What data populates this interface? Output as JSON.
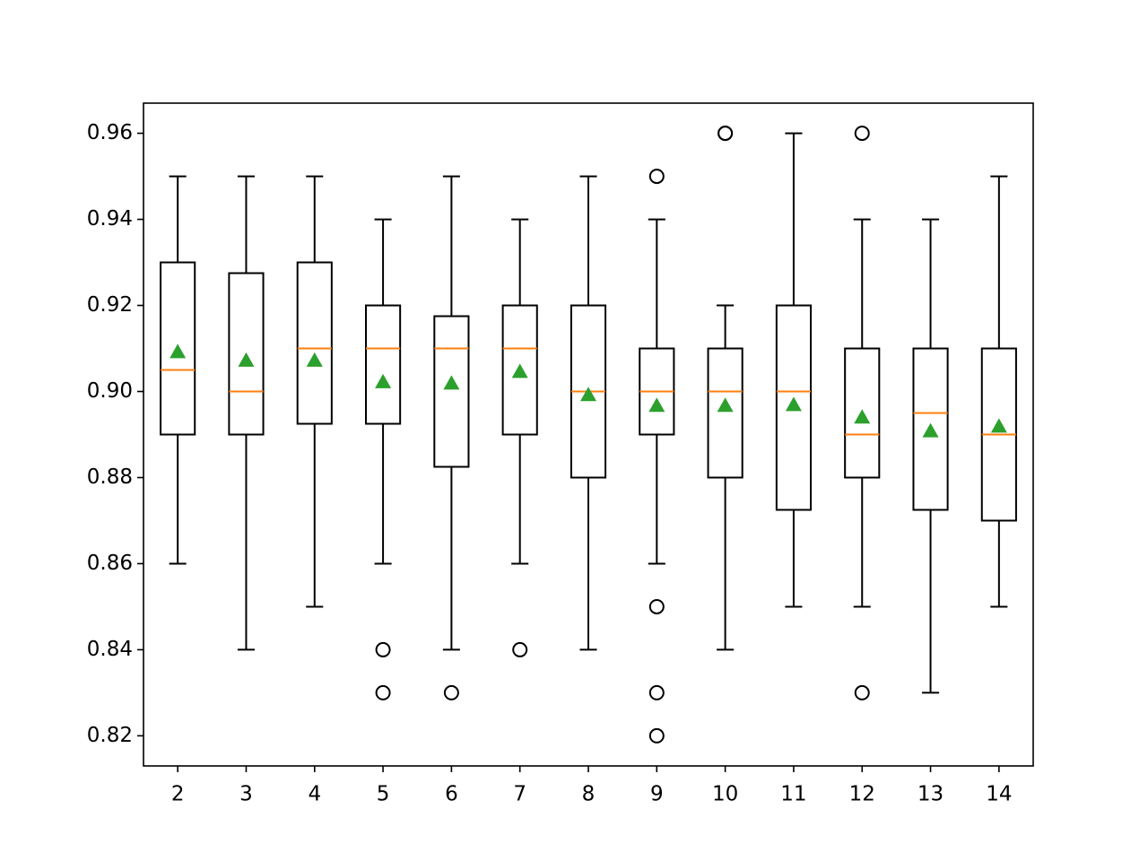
{
  "chart_data": {
    "type": "box",
    "x": [
      2,
      3,
      4,
      5,
      6,
      7,
      8,
      9,
      10,
      11,
      12,
      13,
      14
    ],
    "xlim": [
      1.5,
      14.5
    ],
    "ylim": [
      0.813,
      0.967
    ],
    "yticks": [
      0.82,
      0.84,
      0.86,
      0.88,
      {
        "value": 0.9,
        "label": "0.90"
      },
      0.92,
      0.94,
      0.96
    ],
    "box_color": "#000000",
    "median_color": "#ff7f0e",
    "mean_color": "#2ca02c",
    "boxes": [
      {
        "whislo": 0.86,
        "q1": 0.89,
        "med": 0.905,
        "q3": 0.93,
        "whishi": 0.95,
        "mean": 0.909,
        "fliers": []
      },
      {
        "whislo": 0.84,
        "q1": 0.89,
        "med": 0.9,
        "q3": 0.9275,
        "whishi": 0.95,
        "mean": 0.907,
        "fliers": []
      },
      {
        "whislo": 0.85,
        "q1": 0.8925,
        "med": 0.91,
        "q3": 0.93,
        "whishi": 0.95,
        "mean": 0.907,
        "fliers": []
      },
      {
        "whislo": 0.86,
        "q1": 0.8925,
        "med": 0.91,
        "q3": 0.92,
        "whishi": 0.94,
        "mean": 0.902,
        "fliers": [
          0.84,
          0.83
        ]
      },
      {
        "whislo": 0.84,
        "q1": 0.8825,
        "med": 0.91,
        "q3": 0.9175,
        "whishi": 0.95,
        "mean": 0.9017,
        "fliers": [
          0.83
        ]
      },
      {
        "whislo": 0.86,
        "q1": 0.89,
        "med": 0.91,
        "q3": 0.92,
        "whishi": 0.94,
        "mean": 0.9044,
        "fliers": [
          0.84
        ]
      },
      {
        "whislo": 0.84,
        "q1": 0.88,
        "med": 0.9,
        "q3": 0.92,
        "whishi": 0.95,
        "mean": 0.899,
        "fliers": []
      },
      {
        "whislo": 0.86,
        "q1": 0.89,
        "med": 0.9,
        "q3": 0.91,
        "whishi": 0.94,
        "mean": 0.8965,
        "fliers": [
          0.95,
          0.85,
          0.83,
          0.82
        ]
      },
      {
        "whislo": 0.84,
        "q1": 0.88,
        "med": 0.9,
        "q3": 0.91,
        "whishi": 0.92,
        "mean": 0.8965,
        "fliers": [
          0.96,
          0.96
        ]
      },
      {
        "whislo": 0.85,
        "q1": 0.8725,
        "med": 0.9,
        "q3": 0.92,
        "whishi": 0.96,
        "mean": 0.8967,
        "fliers": []
      },
      {
        "whislo": 0.85,
        "q1": 0.88,
        "med": 0.89,
        "q3": 0.91,
        "whishi": 0.94,
        "mean": 0.8938,
        "fliers": [
          0.96,
          0.83
        ]
      },
      {
        "whislo": 0.83,
        "q1": 0.8725,
        "med": 0.895,
        "q3": 0.91,
        "whishi": 0.94,
        "mean": 0.8906,
        "fliers": []
      },
      {
        "whislo": 0.85,
        "q1": 0.87,
        "med": 0.89,
        "q3": 0.91,
        "whishi": 0.95,
        "mean": 0.8917,
        "fliers": []
      }
    ]
  }
}
